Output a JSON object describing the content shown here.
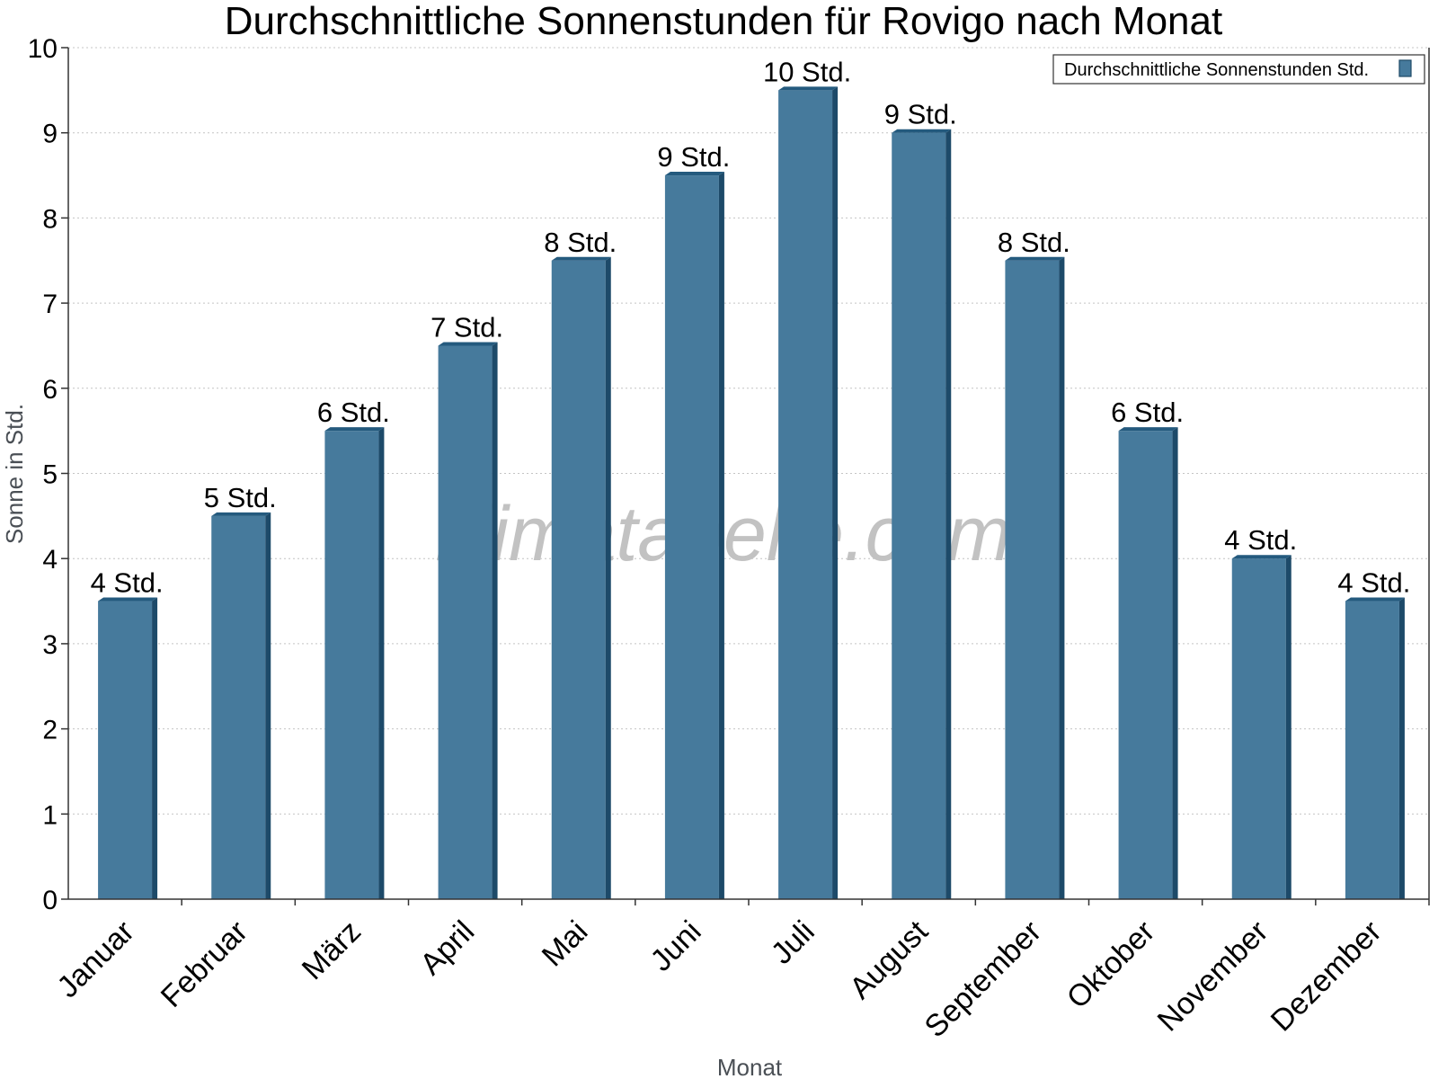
{
  "watermark": "klimatabelle.com",
  "chart_data": {
    "type": "bar",
    "title": "Durchschnittliche Sonnenstunden für Rovigo nach Monat",
    "xlabel": "Monat",
    "ylabel": "Sonne in Std.",
    "ylim": [
      0,
      10
    ],
    "yticks": [
      0,
      1,
      2,
      3,
      4,
      5,
      6,
      7,
      8,
      9,
      10
    ],
    "grid": true,
    "legend_position": "top-right",
    "categories": [
      "Januar",
      "Februar",
      "März",
      "April",
      "Mai",
      "Juni",
      "Juli",
      "August",
      "September",
      "Oktober",
      "November",
      "Dezember"
    ],
    "series": [
      {
        "name": "Durchschnittliche Sonnenstunden Std.",
        "color": "#467a9c",
        "values": [
          3.5,
          4.5,
          5.5,
          6.5,
          7.5,
          8.5,
          9.5,
          9.0,
          7.5,
          5.5,
          4.0,
          3.5
        ],
        "labels": [
          "4 Std.",
          "5 Std.",
          "6 Std.",
          "7 Std.",
          "8 Std.",
          "9 Std.",
          "10 Std.",
          "9 Std.",
          "8 Std.",
          "6 Std.",
          "4 Std.",
          "4 Std."
        ]
      }
    ]
  }
}
